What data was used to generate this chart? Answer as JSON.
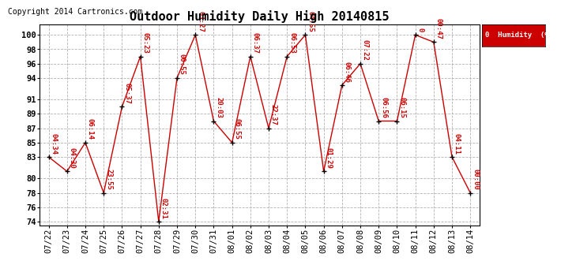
{
  "title": "Outdoor Humidity Daily High 20140815",
  "copyright": "Copyright 2014 Cartronics.com",
  "legend_label": "0  Humidity  (%)",
  "background_color": "#ffffff",
  "plot_bg_color": "#ffffff",
  "line_color": "#cc0000",
  "marker_color": "#000000",
  "grid_color": "#aaaaaa",
  "dates": [
    "07/22",
    "07/23",
    "07/24",
    "07/25",
    "07/26",
    "07/27",
    "07/28",
    "07/29",
    "07/30",
    "07/31",
    "08/01",
    "08/02",
    "08/03",
    "08/04",
    "08/05",
    "08/06",
    "08/07",
    "08/08",
    "08/09",
    "08/10",
    "08/11",
    "08/12",
    "08/13",
    "08/14"
  ],
  "values": [
    83,
    81,
    85,
    78,
    90,
    97,
    74,
    94,
    100,
    88,
    85,
    97,
    87,
    97,
    100,
    81,
    93,
    96,
    88,
    88,
    100,
    99,
    83,
    78
  ],
  "labels": [
    "04:34",
    "04:30",
    "06:14",
    "23:55",
    "05:37",
    "05:23",
    "02:31",
    "00:55",
    "03:27",
    "20:03",
    "06:55",
    "06:37",
    "22:37",
    "06:53",
    "04:55",
    "01:29",
    "06:46",
    "07:22",
    "06:56",
    "06:15",
    "0",
    "00:47",
    "04:11",
    "00:00"
  ],
  "ylim": [
    73.5,
    101.5
  ],
  "yticks": [
    74,
    76,
    78,
    80,
    83,
    85,
    87,
    89,
    91,
    94,
    96,
    98,
    100
  ],
  "title_fontsize": 11,
  "label_fontsize": 6.5,
  "tick_fontsize": 7.5,
  "copyright_fontsize": 7
}
